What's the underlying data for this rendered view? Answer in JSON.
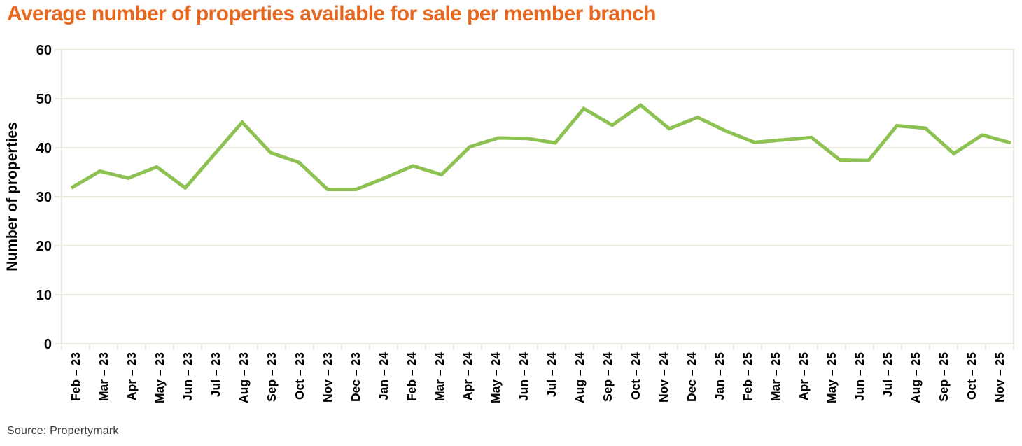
{
  "title": "Average number of properties available for sale per member branch",
  "source": "Source: Propertymark",
  "colors": {
    "title_orange": "#e8671f",
    "line_green": "#8dc152",
    "grid_beige": "#ece8dc",
    "axis_text": "#000000",
    "source_text": "#3a3a3a",
    "background": "#ffffff"
  },
  "chart_data": {
    "type": "line",
    "title": "Average number of properties available for sale per member branch",
    "xlabel": "",
    "ylabel": "Number of properties",
    "ylim": [
      0,
      60
    ],
    "yticks": [
      0,
      10,
      20,
      30,
      40,
      50,
      60
    ],
    "grid": true,
    "legend": "none",
    "x": [
      "Feb – 23",
      "Mar – 23",
      "Apr – 23",
      "May – 23",
      "Jun – 23",
      "Jul – 23",
      "Aug – 23",
      "Sep – 23",
      "Oct – 23",
      "Nov – 23",
      "Dec – 23",
      "Jan – 24",
      "Feb – 24",
      "Mar – 24",
      "Apr – 24",
      "May – 24",
      "Jun – 24",
      "Jul – 24",
      "Aug – 24",
      "Sep – 24",
      "Oct – 24",
      "Nov – 24",
      "Dec – 24",
      "Jan – 25",
      "Feb – 25",
      "Mar – 25",
      "Apr – 25",
      "May – 25",
      "Jun – 25",
      "Jul – 25",
      "Aug – 25",
      "Sep – 25",
      "Oct – 25",
      "Nov – 25"
    ],
    "series": [
      {
        "name": "Average number of properties available for sale per member branch",
        "values": [
          31.8,
          35.2,
          33.8,
          36.1,
          31.8,
          38.5,
          45.2,
          39.0,
          37.0,
          31.5,
          31.5,
          33.8,
          36.3,
          34.5,
          40.2,
          42.0,
          41.9,
          41.0,
          48.0,
          44.6,
          48.7,
          43.9,
          46.2,
          43.4,
          41.1,
          41.6,
          42.1,
          37.5,
          37.4,
          44.5,
          44.0,
          38.8,
          42.6,
          41.0
        ]
      }
    ]
  }
}
